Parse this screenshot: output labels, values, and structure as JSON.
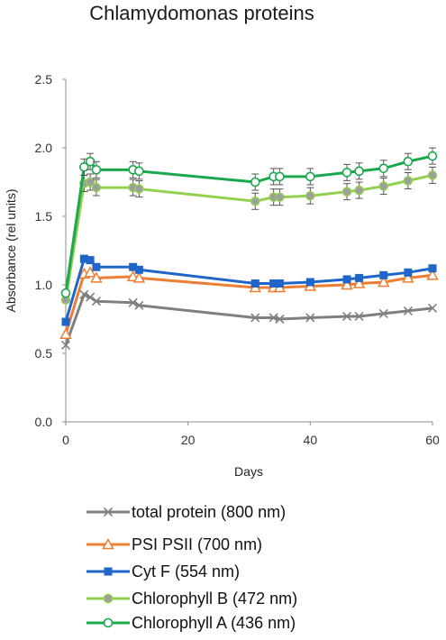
{
  "chart_data": {
    "type": "line",
    "title": "Chlamydomonas proteins",
    "xlabel": "Days",
    "ylabel": "Absorbance (rel units)",
    "xlim": [
      0,
      60
    ],
    "ylim": [
      0,
      2.5
    ],
    "x_ticks": [
      "0",
      "20",
      "40",
      "60"
    ],
    "y_ticks": [
      "0.0",
      "0.5",
      "1.0",
      "1.5",
      "2.0",
      "2.5"
    ],
    "grid": false,
    "legend_position": "bottom",
    "series": [
      {
        "name": "total protein (800 nm)",
        "color": "#7f7f7f",
        "marker": "x",
        "x": [
          0,
          3,
          4,
          5,
          11,
          12,
          31,
          34,
          35,
          40,
          46,
          48,
          52,
          56,
          60
        ],
        "y": [
          0.56,
          0.93,
          0.91,
          0.88,
          0.87,
          0.85,
          0.76,
          0.76,
          0.75,
          0.76,
          0.77,
          0.77,
          0.79,
          0.81,
          0.83
        ]
      },
      {
        "name": "PSI PSII (700 nm)",
        "color": "#ed7d31",
        "marker": "triangle",
        "x": [
          0,
          3,
          4,
          5,
          11,
          12,
          31,
          34,
          35,
          40,
          46,
          48,
          52,
          56,
          60
        ],
        "y": [
          0.64,
          1.08,
          1.09,
          1.05,
          1.06,
          1.05,
          0.98,
          0.98,
          0.98,
          0.99,
          1.0,
          1.01,
          1.02,
          1.05,
          1.07
        ]
      },
      {
        "name": "Cyt F (554 nm)",
        "color": "#1f66c8",
        "marker": "square",
        "x": [
          0,
          3,
          4,
          5,
          11,
          12,
          31,
          34,
          35,
          40,
          46,
          48,
          52,
          56,
          60
        ],
        "y": [
          0.73,
          1.19,
          1.18,
          1.13,
          1.13,
          1.11,
          1.01,
          1.01,
          1.01,
          1.02,
          1.04,
          1.05,
          1.07,
          1.09,
          1.12
        ]
      },
      {
        "name": "Chlorophyll B (472 nm)",
        "color": "#92d050",
        "marker": "circle-filled",
        "x": [
          0,
          3,
          4,
          5,
          11,
          12,
          31,
          34,
          35,
          40,
          46,
          48,
          52,
          56,
          60
        ],
        "y": [
          0.89,
          1.74,
          1.75,
          1.71,
          1.71,
          1.7,
          1.61,
          1.64,
          1.64,
          1.65,
          1.68,
          1.69,
          1.72,
          1.76,
          1.8
        ]
      },
      {
        "name": "Chlorophyll A (436 nm)",
        "color": "#1aa84c",
        "marker": "circle-open",
        "x": [
          0,
          3,
          4,
          5,
          11,
          12,
          31,
          34,
          35,
          40,
          46,
          48,
          52,
          56,
          60
        ],
        "y": [
          0.94,
          1.86,
          1.9,
          1.84,
          1.84,
          1.83,
          1.75,
          1.79,
          1.79,
          1.79,
          1.82,
          1.83,
          1.85,
          1.9,
          1.94
        ]
      }
    ]
  }
}
